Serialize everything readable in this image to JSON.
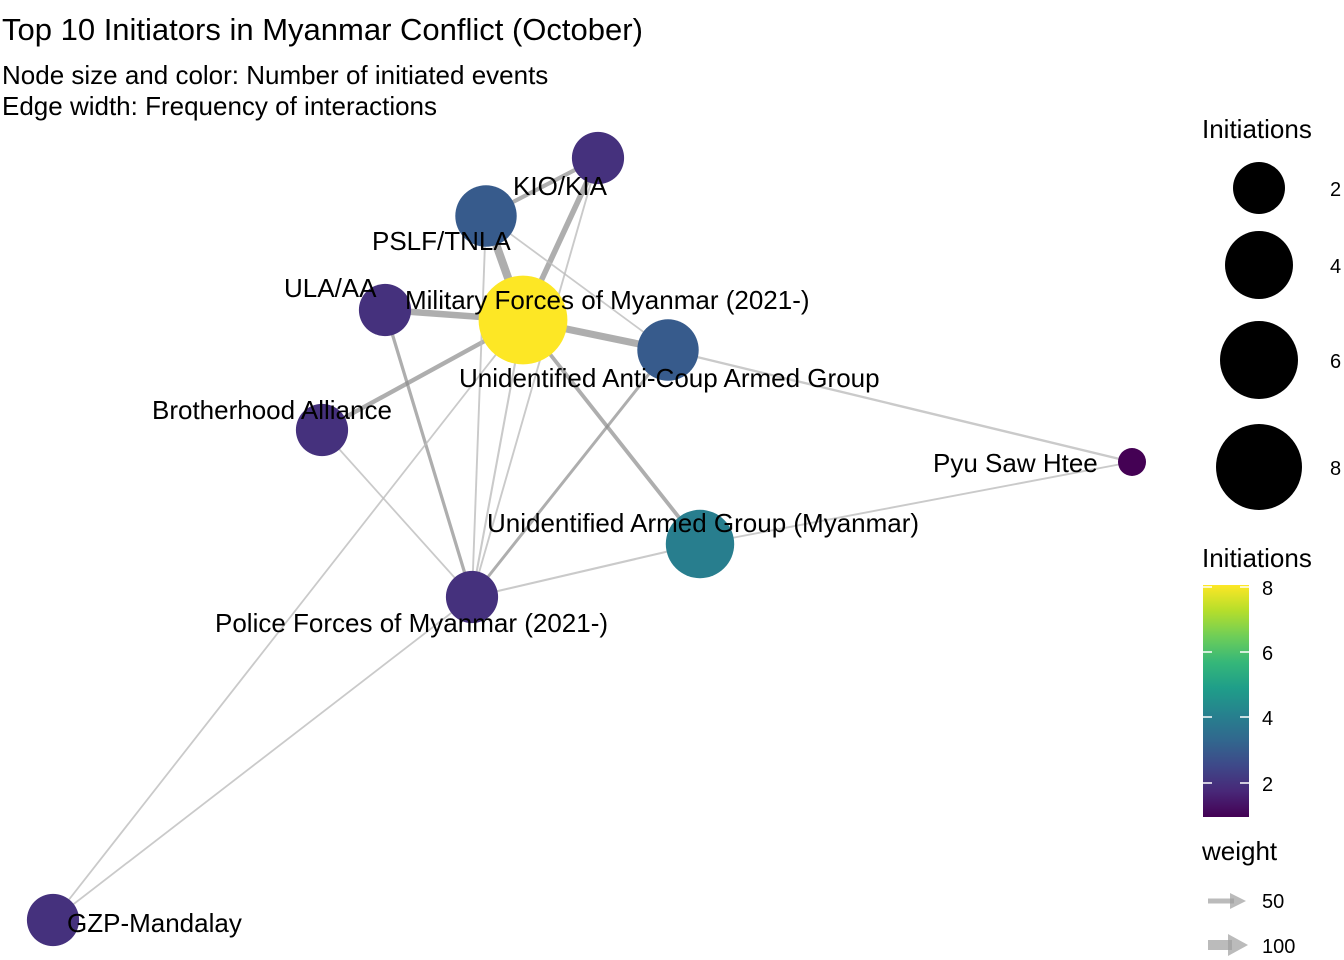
{
  "title": "Top 10 Initiators in Myanmar Conflict (October)",
  "subtitle_lines": [
    "Node size and color: Number of initiated events",
    "Edge width: Frequency of interactions"
  ],
  "nodes": [
    {
      "id": "mil",
      "label": "Military Forces of Myanmar (2021-)",
      "initiations": 8
    },
    {
      "id": "uag",
      "label": "Unidentified Armed Group (Myanmar)",
      "initiations": 4
    },
    {
      "id": "pslf",
      "label": "PSLF/TNLA",
      "initiations": 3
    },
    {
      "id": "uacag",
      "label": "Unidentified Anti-Coup Armed Group",
      "initiations": 3
    },
    {
      "id": "kio",
      "label": "KIO/KIA",
      "initiations": 2
    },
    {
      "id": "ula",
      "label": "ULA/AA",
      "initiations": 2
    },
    {
      "id": "ba",
      "label": "Brotherhood Alliance",
      "initiations": 2
    },
    {
      "id": "police",
      "label": "Police Forces of Myanmar (2021-)",
      "initiations": 2
    },
    {
      "id": "gzp",
      "label": "GZP-Mandalay",
      "initiations": 2
    },
    {
      "id": "pyu",
      "label": "Pyu Saw Htee",
      "initiations": 1
    }
  ],
  "edges": [
    {
      "from": "mil",
      "to": "pslf",
      "weight": 120
    },
    {
      "from": "mil",
      "to": "uacag",
      "weight": 100
    },
    {
      "from": "mil",
      "to": "ula",
      "weight": 90
    },
    {
      "from": "mil",
      "to": "kio",
      "weight": 75
    },
    {
      "from": "mil",
      "to": "ba",
      "weight": 55
    },
    {
      "from": "mil",
      "to": "uag",
      "weight": 45
    },
    {
      "from": "pslf",
      "to": "kio",
      "weight": 50
    },
    {
      "from": "ula",
      "to": "police",
      "weight": 35
    },
    {
      "from": "uacag",
      "to": "police",
      "weight": 30
    },
    {
      "from": "uacag",
      "to": "pyu",
      "weight": 20
    },
    {
      "from": "uag",
      "to": "pyu",
      "weight": 12
    },
    {
      "from": "uag",
      "to": "police",
      "weight": 15
    },
    {
      "from": "mil",
      "to": "police",
      "weight": 15
    },
    {
      "from": "pslf",
      "to": "police",
      "weight": 12
    },
    {
      "from": "kio",
      "to": "police",
      "weight": 12
    },
    {
      "from": "ba",
      "to": "police",
      "weight": 10
    },
    {
      "from": "mil",
      "to": "gzp",
      "weight": 10
    },
    {
      "from": "police",
      "to": "gzp",
      "weight": 10
    },
    {
      "from": "pslf",
      "to": "uacag",
      "weight": 10
    }
  ],
  "legend": {
    "size_title": "Initiations",
    "size_breaks": [
      "2",
      "4",
      "6",
      "8"
    ],
    "color_title": "Initiations",
    "color_breaks": [
      "8",
      "6",
      "4",
      "2"
    ],
    "color_min": 1,
    "color_max": 8,
    "palette": [
      "#440154",
      "#482878",
      "#3e4989",
      "#31688e",
      "#26828e",
      "#1f9e89",
      "#35b779",
      "#6ece58",
      "#b5de2b",
      "#fde725"
    ],
    "weight_title": "weight",
    "weight_breaks": [
      "50",
      "100"
    ]
  }
}
